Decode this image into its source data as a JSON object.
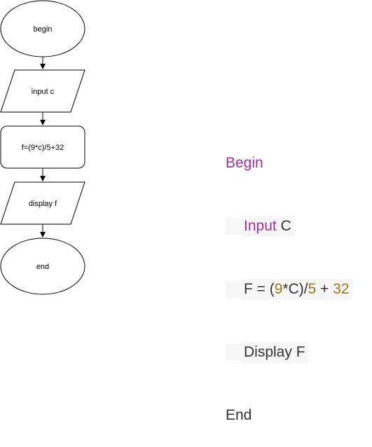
{
  "flowchart": {
    "nodes": [
      {
        "id": "start",
        "shape": "ellipse",
        "label": "begin"
      },
      {
        "id": "input",
        "shape": "parallelogram",
        "label": "input c"
      },
      {
        "id": "process",
        "shape": "rounded-rectangle",
        "label": "f=(9*c)/5+32"
      },
      {
        "id": "output",
        "shape": "parallelogram",
        "label": "display f"
      },
      {
        "id": "end",
        "shape": "ellipse",
        "label": "end"
      }
    ],
    "edges": [
      {
        "from": "start",
        "to": "input"
      },
      {
        "from": "input",
        "to": "process"
      },
      {
        "from": "process",
        "to": "output"
      },
      {
        "from": "output",
        "to": "end"
      }
    ]
  },
  "pseudocode": {
    "begin": "Begin",
    "input_kw": "Input",
    "input_var": "C",
    "assign_lhs": "F = (",
    "num_9": "9",
    "mul_c": "*C)/",
    "num_5": "5",
    "plus": " + ",
    "num_32": "32",
    "display_line": "Display F",
    "end": "End"
  },
  "colors": {
    "keyword": "#a02fa0",
    "number": "#9b7a10",
    "text": "#333333",
    "highlight": "#f7f7f7"
  }
}
